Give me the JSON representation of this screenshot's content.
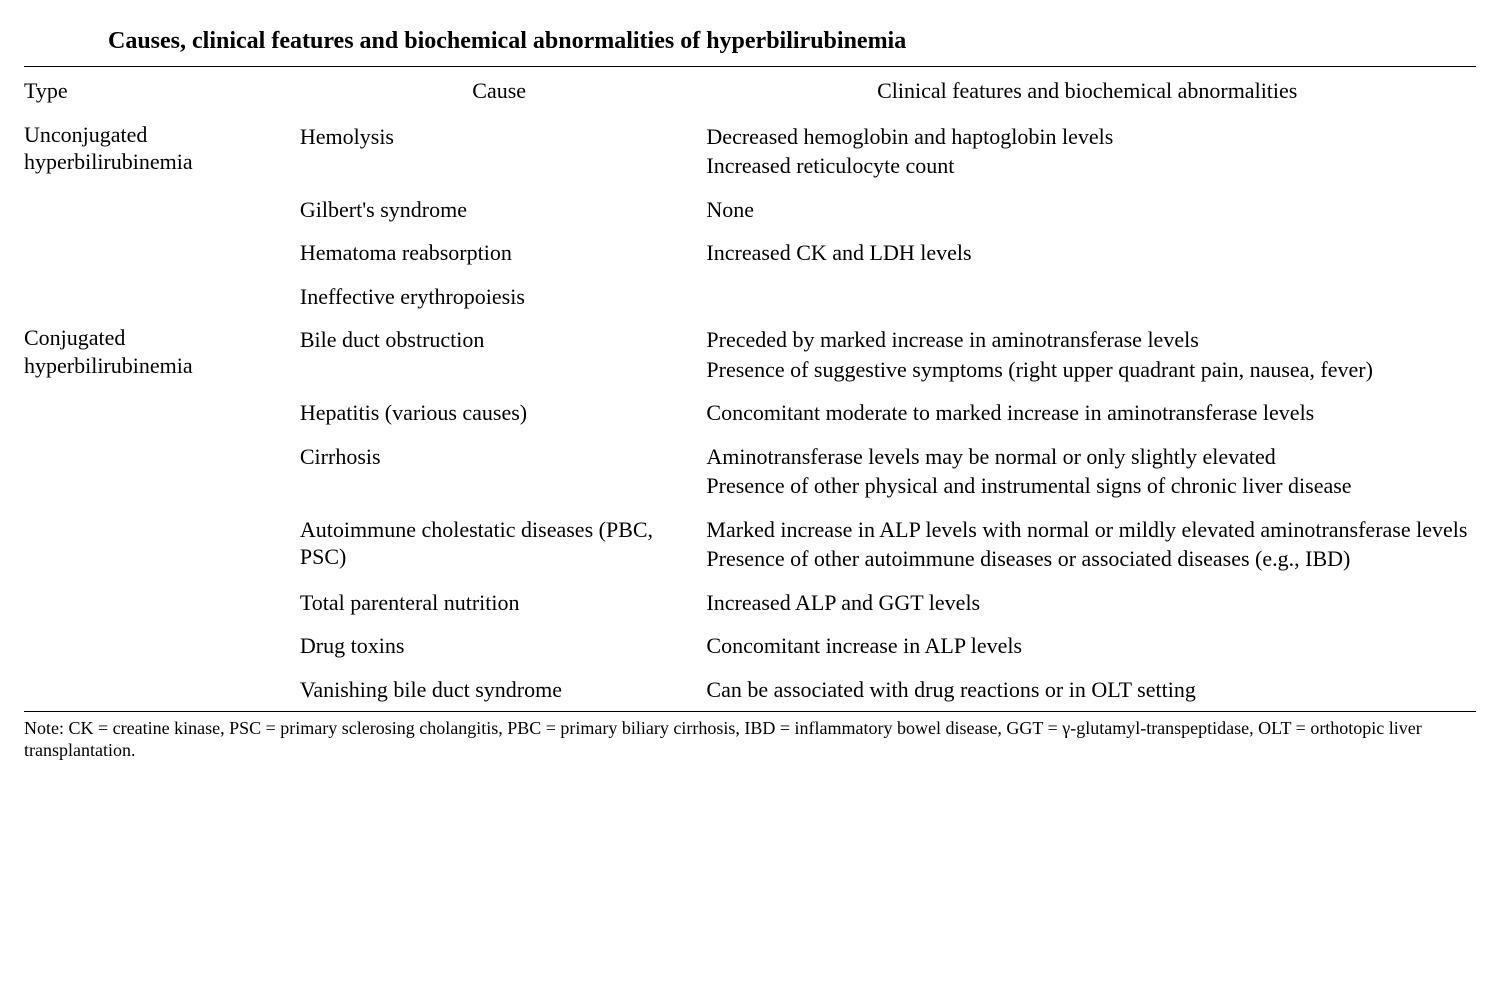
{
  "title": "Causes, clinical features and biochemical abnormalities of hyperbilirubinemia",
  "columns": {
    "type": "Type",
    "cause": "Cause",
    "features": "Clinical features and biochemical abnormalities"
  },
  "groups": [
    {
      "type_lines": [
        "Unconjugated",
        "hyperbilirubinemia"
      ],
      "rows": [
        {
          "cause": "Hemolysis",
          "features": [
            "Decreased hemoglobin and haptoglobin levels",
            "Increased reticulocyte count"
          ]
        },
        {
          "cause": "Gilbert's syndrome",
          "features": [
            "None"
          ]
        },
        {
          "cause": "Hematoma reabsorption",
          "features": [
            "Increased CK and LDH levels"
          ]
        },
        {
          "cause": "Ineffective erythropoiesis",
          "features": []
        }
      ]
    },
    {
      "type_lines": [
        "Conjugated",
        "hyperbilirubinemia"
      ],
      "rows": [
        {
          "cause": "Bile duct obstruction",
          "features": [
            "Preceded by marked increase in aminotransferase levels",
            "Presence of suggestive symptoms (right upper quadrant pain, nausea, fever)"
          ]
        },
        {
          "cause": "Hepatitis (various causes)",
          "features": [
            "Concomitant moderate to marked increase in aminotransferase levels"
          ]
        },
        {
          "cause": "Cirrhosis",
          "features": [
            "Aminotransferase levels may be normal or only slightly elevated",
            "Presence of other physical and instrumental signs of chronic liver disease"
          ]
        },
        {
          "cause": "Autoimmune cholestatic diseases (PBC, PSC)",
          "features": [
            "Marked increase in ALP levels with normal or mildly elevated aminotransferase levels",
            "Presence of other autoimmune diseases or associated diseases (e.g., IBD)"
          ]
        },
        {
          "cause": "Total parenteral nutrition",
          "features": [
            "Increased ALP and GGT levels"
          ]
        },
        {
          "cause": "Drug toxins",
          "features": [
            "Concomitant increase in ALP levels"
          ]
        },
        {
          "cause": "Vanishing bile duct syndrome",
          "features": [
            "Can be associated with drug reactions or in OLT setting"
          ]
        }
      ]
    }
  ],
  "footnote": "Note: CK = creatine kinase, PSC = primary sclerosing cholangitis, PBC = primary biliary cirrhosis, IBD = inflammatory bowel disease, GGT = γ-glutamyl-transpeptidase, OLT = orthotopic liver transplantation."
}
